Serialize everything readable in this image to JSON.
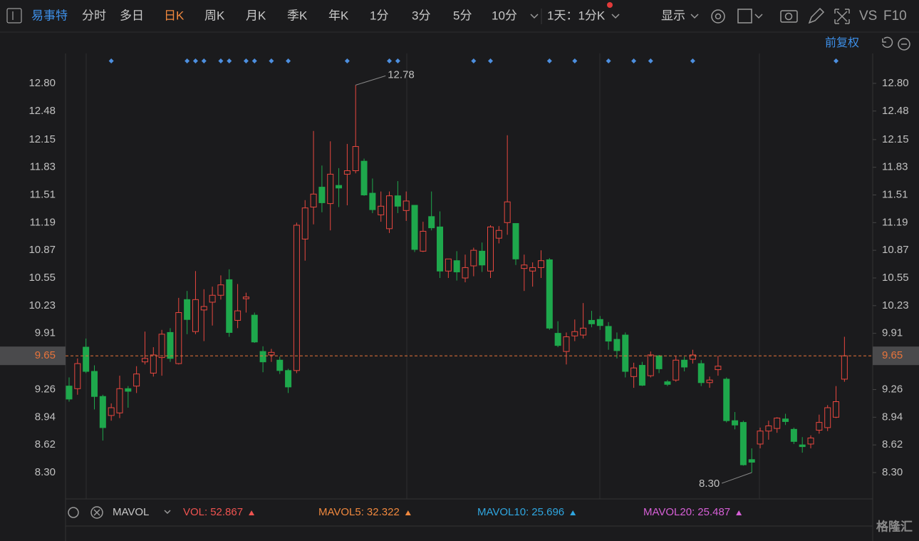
{
  "toolbar": {
    "stock": "易事特",
    "tabs": [
      "分时",
      "多日",
      "日K",
      "周K",
      "月K",
      "季K",
      "年K",
      "1分",
      "3分",
      "5分",
      "10分"
    ],
    "active": "日K",
    "period": "1天：1分K",
    "display": "显示",
    "vs": "VS",
    "f10": "F10"
  },
  "adjust": "前复权",
  "chart_data": {
    "type": "candlestick",
    "ylim": [
      8.0,
      13.15
    ],
    "yticks": [
      {
        "value": 8.3,
        "label": "8.30"
      },
      8.62,
      8.94,
      9.26,
      9.91,
      10.23,
      10.55,
      10.87,
      11.19,
      11.51,
      11.83,
      12.15,
      12.48,
      {
        "value": 12.8,
        "label": "12.80"
      }
    ],
    "up_color": "#e8473f",
    "down_color": "#1ea84c",
    "last_price": 9.65,
    "last_price_color": "#e8743b",
    "annotations": [
      12.78,
      {
        "value": 8.3,
        "label": "8.30"
      }
    ],
    "events": [
      5,
      14,
      15,
      16,
      18,
      19,
      21,
      22,
      24,
      26,
      33,
      38,
      39,
      48,
      50,
      57,
      60,
      64,
      67,
      69,
      74,
      91
    ],
    "open": [
      9.3,
      9.27,
      9.75,
      9.47,
      9.18,
      8.96,
      8.99,
      9.27,
      9.3,
      9.58,
      9.45,
      9.63,
      9.92,
      9.56,
      10.3,
      9.93,
      10.18,
      10.27,
      10.35,
      10.53,
      10.06,
      10.31,
      10.12,
      9.7,
      9.66,
      9.6,
      9.48,
      9.48,
      11.0,
      11.37,
      11.6,
      11.41,
      11.62,
      11.75,
      11.79,
      11.9,
      11.53,
      11.28,
      11.12,
      11.5,
      11.33,
      11.39,
      10.86,
      11.26,
      11.14,
      10.63,
      10.75,
      10.55,
      10.69,
      10.86,
      10.63,
      11.01,
      11.19,
      11.18,
      10.66,
      10.63,
      10.67,
      10.76,
      9.91,
      9.7,
      9.88,
      9.89,
      10.06,
      10.07,
      9.99,
      9.84,
      9.89,
      9.41,
      9.54,
      9.42,
      9.65,
      9.35,
      9.37,
      9.6,
      9.61,
      9.56,
      9.34,
      9.49,
      9.38,
      8.9,
      8.88,
      8.45,
      8.63,
      8.78,
      8.81,
      8.92,
      8.8,
      8.62,
      8.63,
      8.79,
      8.82,
      8.94,
      9.38
    ],
    "high": [
      9.4,
      9.62,
      9.85,
      9.54,
      9.2,
      9.1,
      9.42,
      9.3,
      9.53,
      9.93,
      9.75,
      9.95,
      9.97,
      10.32,
      10.4,
      10.63,
      10.42,
      10.45,
      10.58,
      10.65,
      10.48,
      10.38,
      10.15,
      9.76,
      9.73,
      9.64,
      9.5,
      11.19,
      11.45,
      12.25,
      11.85,
      12.13,
      11.82,
      12.1,
      12.78,
      11.93,
      11.7,
      11.55,
      11.55,
      11.67,
      11.55,
      11.39,
      11.2,
      11.55,
      11.32,
      10.77,
      10.86,
      10.82,
      10.9,
      10.96,
      11.16,
      11.15,
      12.2,
      11.18,
      10.82,
      10.73,
      10.87,
      10.78,
      10.05,
      9.92,
      10.07,
      10.26,
      10.17,
      10.11,
      10.04,
      9.92,
      9.92,
      9.57,
      9.58,
      9.7,
      9.66,
      9.37,
      9.65,
      9.64,
      9.72,
      9.6,
      9.41,
      9.65,
      9.4,
      9.0,
      8.9,
      8.58,
      8.82,
      8.9,
      8.94,
      8.98,
      8.82,
      8.71,
      8.73,
      8.97,
      9.08,
      9.3,
      9.87
    ],
    "low": [
      9.12,
      9.2,
      9.45,
      9.03,
      8.67,
      8.9,
      8.93,
      9.05,
      9.22,
      9.55,
      9.41,
      9.42,
      9.58,
      9.55,
      9.9,
      9.9,
      9.82,
      10.0,
      10.3,
      9.87,
      9.97,
      10.15,
      9.8,
      9.46,
      9.58,
      9.44,
      9.22,
      9.45,
      10.75,
      11.17,
      11.31,
      11.1,
      11.37,
      11.39,
      11.76,
      11.5,
      11.3,
      11.2,
      11.07,
      11.3,
      11.21,
      10.85,
      10.85,
      11.1,
      10.55,
      10.55,
      10.52,
      10.5,
      10.57,
      10.62,
      10.55,
      10.95,
      11.05,
      10.7,
      10.4,
      10.45,
      10.55,
      9.95,
      9.75,
      9.55,
      9.82,
      9.85,
      9.98,
      9.95,
      9.72,
      9.62,
      9.4,
      9.28,
      9.3,
      9.4,
      9.45,
      9.3,
      9.35,
      9.47,
      9.56,
      9.3,
      9.28,
      9.42,
      8.88,
      8.8,
      8.38,
      8.3,
      8.58,
      8.68,
      8.76,
      8.85,
      8.63,
      8.53,
      8.58,
      8.75,
      8.78,
      8.93,
      9.35
    ],
    "close": [
      9.15,
      9.56,
      9.47,
      9.18,
      8.82,
      9.05,
      9.27,
      9.24,
      9.44,
      9.62,
      9.66,
      9.9,
      9.62,
      10.15,
      10.07,
      10.3,
      10.22,
      10.35,
      10.47,
      9.92,
      10.17,
      10.33,
      9.81,
      9.58,
      9.69,
      9.48,
      9.29,
      11.16,
      11.36,
      11.52,
      11.42,
      11.75,
      11.59,
      11.79,
      12.07,
      11.51,
      11.34,
      11.38,
      11.5,
      11.38,
      11.44,
      10.88,
      11.09,
      11.13,
      10.63,
      10.77,
      10.62,
      10.67,
      10.87,
      10.7,
      11.14,
      11.1,
      11.43,
      10.77,
      10.7,
      10.67,
      10.75,
      9.97,
      9.77,
      9.87,
      9.93,
      9.97,
      10.02,
      10.0,
      9.82,
      9.71,
      9.47,
      9.51,
      9.31,
      9.66,
      9.5,
      9.32,
      9.6,
      9.52,
      9.66,
      9.34,
      9.37,
      9.53,
      8.9,
      8.85,
      8.39,
      8.42,
      8.78,
      8.84,
      8.93,
      8.89,
      8.66,
      8.6,
      8.7,
      8.88,
      9.05,
      9.12,
      9.65
    ]
  },
  "volume_panel": {
    "name": "MAVOL",
    "items": [
      {
        "label": "VOL:",
        "value": 52.867,
        "color": "#ef5350"
      },
      {
        "label": "MAVOL5:",
        "value": 32.322,
        "color": "#f0883e"
      },
      {
        "label": "MAVOL10:",
        "value": 25.696,
        "color": "#2fa6e0"
      },
      {
        "label": "MAVOL20:",
        "value": 25.487,
        "color": "#d65fd6"
      }
    ]
  },
  "watermark": "格隆汇"
}
